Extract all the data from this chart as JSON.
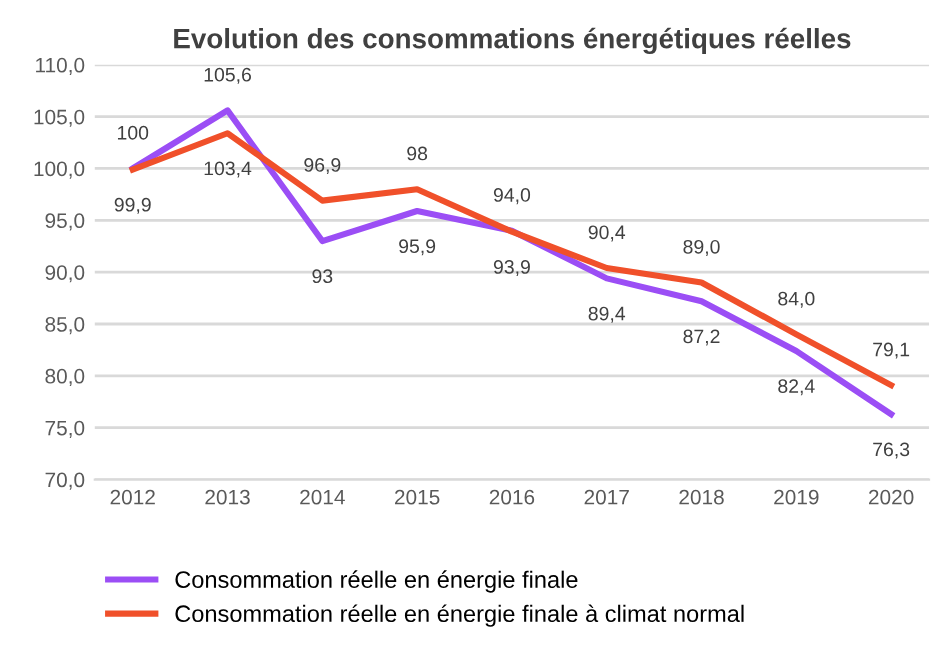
{
  "chart_data": {
    "type": "line",
    "title": "Evolution des consommations énergétiques réelles",
    "categories": [
      "2012",
      "2013",
      "2014",
      "2015",
      "2016",
      "2017",
      "2018",
      "2019",
      "2020"
    ],
    "series": [
      {
        "name": "Consommation réelle en énergie finale",
        "color": "#9b4ef5",
        "values": [
          100,
          105.6,
          93,
          95.9,
          94.0,
          89.4,
          87.2,
          82.4,
          76.3
        ],
        "value_labels": [
          "100",
          "105,6",
          "93",
          "95,9",
          "94,0",
          "89,4",
          "87,2",
          "82,4",
          "76,3"
        ]
      },
      {
        "name": "Consommation réelle en énergie finale à climat normal",
        "color": "#f0502a",
        "values": [
          99.9,
          103.4,
          96.9,
          98,
          93.9,
          90.4,
          89.0,
          84.0,
          79.1
        ],
        "value_labels": [
          "99,9",
          "103,4",
          "96,9",
          "98",
          "93,9",
          "90,4",
          "89,0",
          "84,0",
          "79,1"
        ]
      }
    ],
    "ylim": [
      70,
      110
    ],
    "yticks": [
      {
        "value": 70,
        "label": "70,0"
      },
      {
        "value": 75,
        "label": "75,0"
      },
      {
        "value": 80,
        "label": "80,0"
      },
      {
        "value": 85,
        "label": "85,0"
      },
      {
        "value": 90,
        "label": "90,0"
      },
      {
        "value": 95,
        "label": "95,0"
      },
      {
        "value": 100,
        "label": "100,0"
      },
      {
        "value": 105,
        "label": "105,0"
      },
      {
        "value": 110,
        "label": "110,0"
      }
    ],
    "grid": "y",
    "legend": "bottom",
    "marker": "none",
    "line_style": "solid"
  }
}
